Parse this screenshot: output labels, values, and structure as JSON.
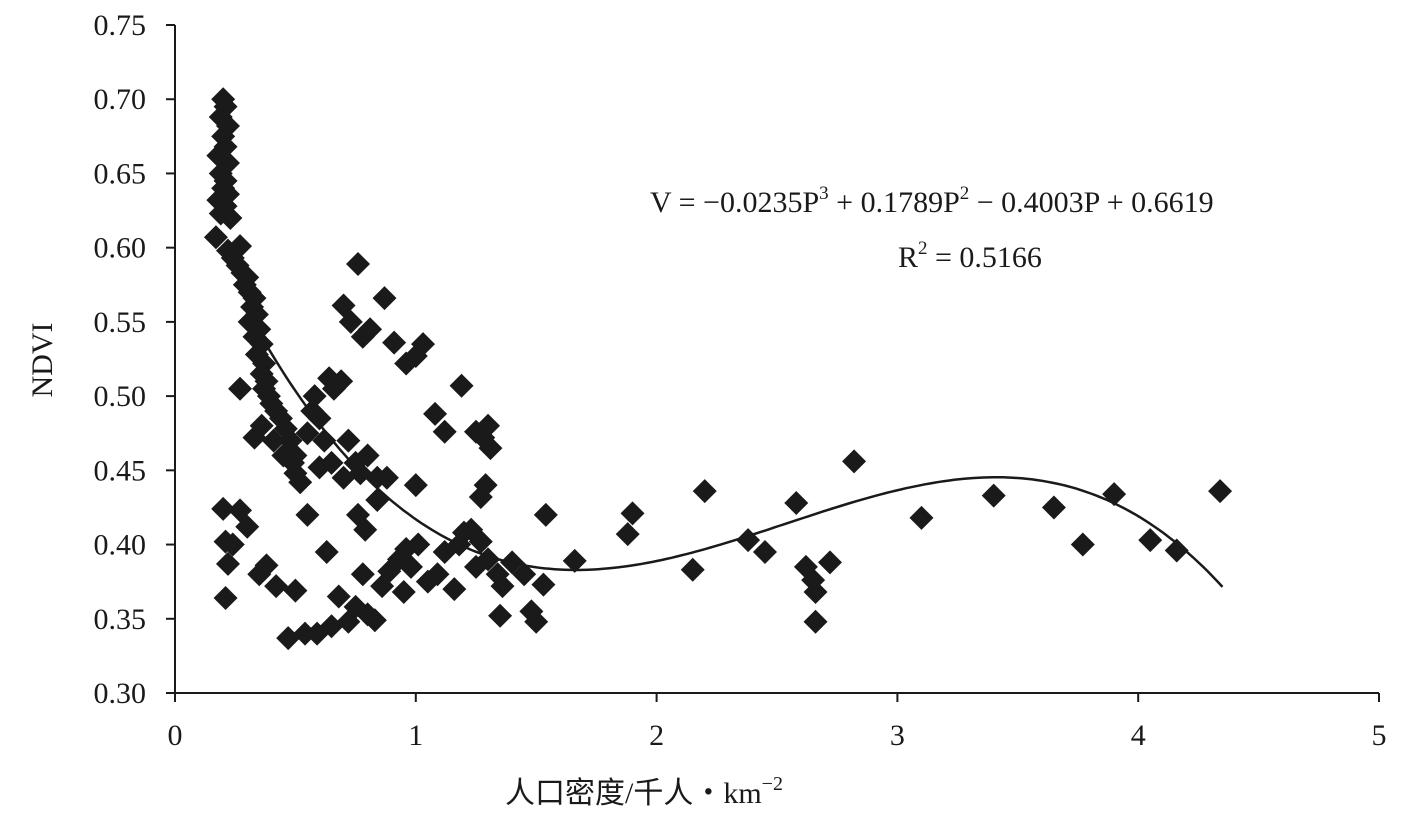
{
  "chart_data": {
    "type": "scatter",
    "ylabel": "NDVI",
    "xlabel": "人口密度/千人・km",
    "xlabel_exponent": "−2",
    "xlim": [
      0,
      5
    ],
    "ylim": [
      0.3,
      0.75
    ],
    "x_ticks": [
      {
        "value": 0,
        "label": "0"
      },
      {
        "value": 1,
        "label": "1"
      },
      {
        "value": 2,
        "label": "2"
      },
      {
        "value": 3,
        "label": "3"
      },
      {
        "value": 4,
        "label": "4"
      },
      {
        "value": 5,
        "label": "5"
      }
    ],
    "y_ticks": [
      {
        "value": 0.3,
        "label": "0.30"
      },
      {
        "value": 0.35,
        "label": "0.35"
      },
      {
        "value": 0.4,
        "label": "0.40"
      },
      {
        "value": 0.45,
        "label": "0.45"
      },
      {
        "value": 0.5,
        "label": "0.50"
      },
      {
        "value": 0.55,
        "label": "0.55"
      },
      {
        "value": 0.6,
        "label": "0.60"
      },
      {
        "value": 0.65,
        "label": "0.65"
      },
      {
        "value": 0.7,
        "label": "0.70"
      },
      {
        "value": 0.75,
        "label": "0.75"
      }
    ],
    "grid": false,
    "marker": "diamond",
    "marker_color": "#1a1a1a",
    "equation": {
      "prefix": "V = −0.0235P",
      "t1_exp": "3",
      "mid1": " + 0.1789P",
      "t2_exp": "2",
      "suffix": " − 0.4003P + 0.6619",
      "r2_base": "R",
      "r2_exp": "2",
      "r2_value": " = 0.5166"
    },
    "trendline": {
      "type": "polynomial",
      "order": 3,
      "coefficients": [
        -0.0235,
        0.1789,
        -0.4003,
        0.6619
      ],
      "x_range": [
        0.3,
        4.35
      ],
      "r_squared": 0.5166
    },
    "points": [
      [
        0.2,
        0.7
      ],
      [
        0.21,
        0.695
      ],
      [
        0.19,
        0.688
      ],
      [
        0.22,
        0.682
      ],
      [
        0.2,
        0.675
      ],
      [
        0.21,
        0.668
      ],
      [
        0.18,
        0.662
      ],
      [
        0.22,
        0.657
      ],
      [
        0.19,
        0.65
      ],
      [
        0.21,
        0.645
      ],
      [
        0.2,
        0.64
      ],
      [
        0.22,
        0.636
      ],
      [
        0.18,
        0.632
      ],
      [
        0.21,
        0.628
      ],
      [
        0.19,
        0.623
      ],
      [
        0.23,
        0.62
      ],
      [
        0.17,
        0.607
      ],
      [
        0.22,
        0.598
      ],
      [
        0.24,
        0.593
      ],
      [
        0.27,
        0.601
      ],
      [
        0.26,
        0.588
      ],
      [
        0.28,
        0.583
      ],
      [
        0.3,
        0.58
      ],
      [
        0.29,
        0.575
      ],
      [
        0.31,
        0.57
      ],
      [
        0.33,
        0.566
      ],
      [
        0.32,
        0.56
      ],
      [
        0.34,
        0.555
      ],
      [
        0.31,
        0.55
      ],
      [
        0.35,
        0.545
      ],
      [
        0.33,
        0.54
      ],
      [
        0.36,
        0.535
      ],
      [
        0.34,
        0.528
      ],
      [
        0.37,
        0.522
      ],
      [
        0.36,
        0.515
      ],
      [
        0.38,
        0.51
      ],
      [
        0.37,
        0.505
      ],
      [
        0.39,
        0.5
      ],
      [
        0.4,
        0.495
      ],
      [
        0.42,
        0.49
      ],
      [
        0.44,
        0.485
      ],
      [
        0.46,
        0.478
      ],
      [
        0.48,
        0.47
      ],
      [
        0.47,
        0.462
      ],
      [
        0.49,
        0.455
      ],
      [
        0.5,
        0.448
      ],
      [
        0.52,
        0.442
      ],
      [
        0.27,
        0.505
      ],
      [
        0.33,
        0.472
      ],
      [
        0.36,
        0.48
      ],
      [
        0.41,
        0.47
      ],
      [
        0.45,
        0.46
      ],
      [
        0.5,
        0.46
      ],
      [
        0.55,
        0.475
      ],
      [
        0.57,
        0.49
      ],
      [
        0.6,
        0.485
      ],
      [
        0.62,
        0.47
      ],
      [
        0.66,
        0.505
      ],
      [
        0.69,
        0.51
      ],
      [
        0.64,
        0.512
      ],
      [
        0.72,
        0.47
      ],
      [
        0.75,
        0.455
      ],
      [
        0.77,
        0.448
      ],
      [
        0.8,
        0.46
      ],
      [
        0.58,
        0.5
      ],
      [
        0.65,
        0.455
      ],
      [
        0.7,
        0.445
      ],
      [
        0.84,
        0.445
      ],
      [
        0.55,
        0.42
      ],
      [
        0.63,
        0.395
      ],
      [
        0.76,
        0.42
      ],
      [
        0.79,
        0.41
      ],
      [
        0.84,
        0.43
      ],
      [
        0.78,
        0.38
      ],
      [
        0.86,
        0.372
      ],
      [
        0.89,
        0.382
      ],
      [
        0.93,
        0.39
      ],
      [
        0.96,
        0.397
      ],
      [
        0.98,
        0.385
      ],
      [
        1.01,
        0.4
      ],
      [
        1.05,
        0.375
      ],
      [
        1.09,
        0.38
      ],
      [
        0.95,
        0.368
      ],
      [
        1.12,
        0.395
      ],
      [
        1.16,
        0.37
      ],
      [
        1.18,
        0.4
      ],
      [
        1.2,
        0.408
      ],
      [
        1.23,
        0.41
      ],
      [
        1.27,
        0.402
      ],
      [
        1.25,
        0.385
      ],
      [
        1.3,
        0.39
      ],
      [
        1.34,
        0.38
      ],
      [
        1.36,
        0.372
      ],
      [
        1.4,
        0.388
      ],
      [
        1.45,
        0.38
      ],
      [
        1.35,
        0.352
      ],
      [
        1.48,
        0.355
      ],
      [
        1.5,
        0.348
      ],
      [
        1.53,
        0.373
      ],
      [
        1.54,
        0.42
      ],
      [
        1.66,
        0.389
      ],
      [
        1.88,
        0.407
      ],
      [
        1.9,
        0.421
      ],
      [
        2.15,
        0.383
      ],
      [
        2.2,
        0.436
      ],
      [
        2.38,
        0.403
      ],
      [
        2.45,
        0.395
      ],
      [
        2.58,
        0.428
      ],
      [
        2.62,
        0.385
      ],
      [
        2.65,
        0.376
      ],
      [
        2.66,
        0.368
      ],
      [
        2.72,
        0.388
      ],
      [
        2.66,
        0.348
      ],
      [
        2.82,
        0.456
      ],
      [
        3.1,
        0.418
      ],
      [
        3.4,
        0.433
      ],
      [
        3.65,
        0.425
      ],
      [
        3.77,
        0.4
      ],
      [
        3.9,
        0.434
      ],
      [
        4.05,
        0.403
      ],
      [
        4.16,
        0.396
      ],
      [
        4.34,
        0.436
      ],
      [
        0.2,
        0.424
      ],
      [
        0.21,
        0.402
      ],
      [
        0.24,
        0.4
      ],
      [
        0.22,
        0.387
      ],
      [
        0.27,
        0.423
      ],
      [
        0.3,
        0.412
      ],
      [
        0.21,
        0.364
      ],
      [
        0.35,
        0.38
      ],
      [
        0.38,
        0.386
      ],
      [
        0.42,
        0.372
      ],
      [
        0.47,
        0.337
      ],
      [
        0.5,
        0.369
      ],
      [
        0.54,
        0.34
      ],
      [
        0.59,
        0.34
      ],
      [
        0.68,
        0.365
      ],
      [
        0.72,
        0.348
      ],
      [
        0.75,
        0.358
      ],
      [
        0.8,
        0.353
      ],
      [
        0.83,
        0.349
      ],
      [
        0.65,
        0.345
      ],
      [
        0.76,
        0.589
      ],
      [
        0.7,
        0.561
      ],
      [
        0.73,
        0.55
      ],
      [
        0.78,
        0.54
      ],
      [
        0.81,
        0.545
      ],
      [
        0.87,
        0.566
      ],
      [
        0.91,
        0.536
      ],
      [
        0.96,
        0.522
      ],
      [
        1.0,
        0.527
      ],
      [
        1.03,
        0.535
      ],
      [
        1.08,
        0.488
      ],
      [
        1.12,
        0.476
      ],
      [
        1.19,
        0.507
      ],
      [
        1.25,
        0.476
      ],
      [
        1.28,
        0.472
      ],
      [
        1.3,
        0.48
      ],
      [
        1.31,
        0.465
      ],
      [
        1.27,
        0.432
      ],
      [
        1.29,
        0.44
      ],
      [
        1.0,
        0.44
      ],
      [
        0.88,
        0.445
      ],
      [
        0.6,
        0.452
      ]
    ]
  }
}
